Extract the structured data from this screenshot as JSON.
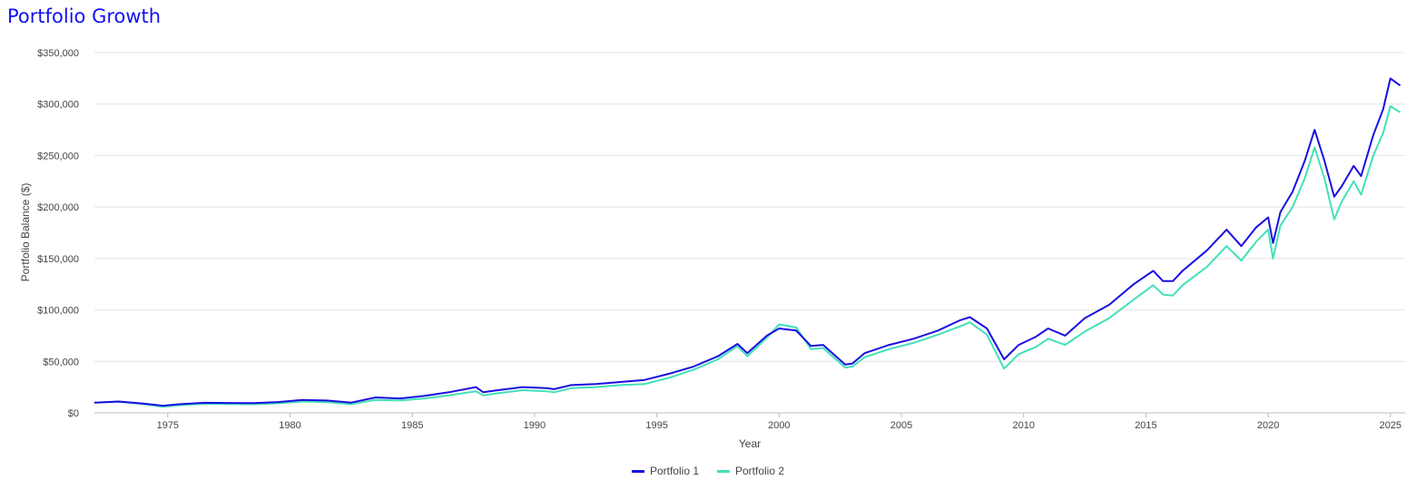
{
  "title": "Portfolio Growth",
  "chart_data": {
    "type": "line",
    "title": "Portfolio Growth",
    "xlabel": "Year",
    "ylabel": "Portfolio Balance ($)",
    "xlim": [
      1972.0,
      2025.6
    ],
    "ylim": [
      0,
      350000
    ],
    "x_ticks": [
      1975,
      1980,
      1985,
      1990,
      1995,
      2000,
      2005,
      2010,
      2015,
      2020,
      2025
    ],
    "y_ticks": [
      0,
      50000,
      100000,
      150000,
      200000,
      250000,
      300000,
      350000
    ],
    "y_tick_labels": [
      "$0",
      "$50,000",
      "$100,000",
      "$150,000",
      "$200,000",
      "$250,000",
      "$300,000",
      "$350,000"
    ],
    "grid": "horizontal",
    "legend": "bottom-center",
    "series": [
      {
        "name": "Portfolio 1",
        "color": "#1a0fe0",
        "points": [
          [
            1972.0,
            10000
          ],
          [
            1973.0,
            11000
          ],
          [
            1974.0,
            9000
          ],
          [
            1974.8,
            7000
          ],
          [
            1975.5,
            8500
          ],
          [
            1976.5,
            9800
          ],
          [
            1977.5,
            9600
          ],
          [
            1978.5,
            9400
          ],
          [
            1979.5,
            10500
          ],
          [
            1980.5,
            12500
          ],
          [
            1981.5,
            12000
          ],
          [
            1982.5,
            10000
          ],
          [
            1983.5,
            15000
          ],
          [
            1984.5,
            14000
          ],
          [
            1985.5,
            16500
          ],
          [
            1986.5,
            20000
          ],
          [
            1987.6,
            25000
          ],
          [
            1987.9,
            20000
          ],
          [
            1988.5,
            22000
          ],
          [
            1989.5,
            25000
          ],
          [
            1990.5,
            24000
          ],
          [
            1990.8,
            23000
          ],
          [
            1991.5,
            27000
          ],
          [
            1992.5,
            28000
          ],
          [
            1993.5,
            30000
          ],
          [
            1994.5,
            32000
          ],
          [
            1995.5,
            38000
          ],
          [
            1996.5,
            45000
          ],
          [
            1997.5,
            55000
          ],
          [
            1998.3,
            67000
          ],
          [
            1998.7,
            58000
          ],
          [
            1999.5,
            75000
          ],
          [
            2000.0,
            82000
          ],
          [
            2000.7,
            80000
          ],
          [
            2001.3,
            65000
          ],
          [
            2001.8,
            66000
          ],
          [
            2002.7,
            47000
          ],
          [
            2003.0,
            48000
          ],
          [
            2003.5,
            58000
          ],
          [
            2004.5,
            66000
          ],
          [
            2005.5,
            72000
          ],
          [
            2006.5,
            80000
          ],
          [
            2007.4,
            90000
          ],
          [
            2007.8,
            93000
          ],
          [
            2008.5,
            82000
          ],
          [
            2009.2,
            52000
          ],
          [
            2009.8,
            66000
          ],
          [
            2010.5,
            74000
          ],
          [
            2011.0,
            82000
          ],
          [
            2011.7,
            75000
          ],
          [
            2012.5,
            92000
          ],
          [
            2013.5,
            105000
          ],
          [
            2014.5,
            125000
          ],
          [
            2015.3,
            138000
          ],
          [
            2015.7,
            128000
          ],
          [
            2016.1,
            128000
          ],
          [
            2016.5,
            138000
          ],
          [
            2017.5,
            158000
          ],
          [
            2018.3,
            178000
          ],
          [
            2018.9,
            162000
          ],
          [
            2019.5,
            180000
          ],
          [
            2020.0,
            190000
          ],
          [
            2020.2,
            165000
          ],
          [
            2020.5,
            195000
          ],
          [
            2021.0,
            215000
          ],
          [
            2021.5,
            245000
          ],
          [
            2021.9,
            275000
          ],
          [
            2022.3,
            245000
          ],
          [
            2022.7,
            210000
          ],
          [
            2023.0,
            220000
          ],
          [
            2023.5,
            240000
          ],
          [
            2023.8,
            230000
          ],
          [
            2024.3,
            270000
          ],
          [
            2024.7,
            295000
          ],
          [
            2025.0,
            325000
          ],
          [
            2025.4,
            318000
          ]
        ]
      },
      {
        "name": "Portfolio 2",
        "color": "#43e0b8",
        "points": [
          [
            1972.0,
            10000
          ],
          [
            1973.0,
            10800
          ],
          [
            1974.0,
            8500
          ],
          [
            1974.8,
            6000
          ],
          [
            1975.5,
            7500
          ],
          [
            1976.5,
            8800
          ],
          [
            1977.5,
            8600
          ],
          [
            1978.5,
            8400
          ],
          [
            1979.5,
            9300
          ],
          [
            1980.5,
            11000
          ],
          [
            1981.5,
            10500
          ],
          [
            1982.5,
            8500
          ],
          [
            1983.5,
            12500
          ],
          [
            1984.5,
            12000
          ],
          [
            1985.5,
            14000
          ],
          [
            1986.5,
            17000
          ],
          [
            1987.6,
            21000
          ],
          [
            1987.9,
            17000
          ],
          [
            1988.5,
            19000
          ],
          [
            1989.5,
            22000
          ],
          [
            1990.5,
            21000
          ],
          [
            1990.8,
            20000
          ],
          [
            1991.5,
            24000
          ],
          [
            1992.5,
            25000
          ],
          [
            1993.5,
            27000
          ],
          [
            1994.5,
            28000
          ],
          [
            1995.5,
            34000
          ],
          [
            1996.5,
            42000
          ],
          [
            1997.5,
            52000
          ],
          [
            1998.3,
            65000
          ],
          [
            1998.7,
            55000
          ],
          [
            1999.5,
            73000
          ],
          [
            2000.0,
            86000
          ],
          [
            2000.7,
            83000
          ],
          [
            2001.3,
            62000
          ],
          [
            2001.8,
            63000
          ],
          [
            2002.7,
            44000
          ],
          [
            2003.0,
            45000
          ],
          [
            2003.5,
            54000
          ],
          [
            2004.5,
            62000
          ],
          [
            2005.5,
            68000
          ],
          [
            2006.5,
            76000
          ],
          [
            2007.4,
            84000
          ],
          [
            2007.8,
            88000
          ],
          [
            2008.5,
            76000
          ],
          [
            2009.2,
            43000
          ],
          [
            2009.8,
            57000
          ],
          [
            2010.5,
            64000
          ],
          [
            2011.0,
            72000
          ],
          [
            2011.7,
            66000
          ],
          [
            2012.5,
            79000
          ],
          [
            2013.5,
            92000
          ],
          [
            2014.5,
            110000
          ],
          [
            2015.3,
            124000
          ],
          [
            2015.7,
            115000
          ],
          [
            2016.1,
            114000
          ],
          [
            2016.5,
            124000
          ],
          [
            2017.5,
            142000
          ],
          [
            2018.3,
            162000
          ],
          [
            2018.9,
            148000
          ],
          [
            2019.5,
            166000
          ],
          [
            2020.0,
            178000
          ],
          [
            2020.2,
            150000
          ],
          [
            2020.5,
            182000
          ],
          [
            2021.0,
            200000
          ],
          [
            2021.5,
            228000
          ],
          [
            2021.9,
            258000
          ],
          [
            2022.3,
            228000
          ],
          [
            2022.7,
            188000
          ],
          [
            2023.0,
            205000
          ],
          [
            2023.5,
            225000
          ],
          [
            2023.8,
            212000
          ],
          [
            2024.3,
            250000
          ],
          [
            2024.7,
            272000
          ],
          [
            2025.0,
            298000
          ],
          [
            2025.4,
            292000
          ]
        ]
      }
    ]
  }
}
